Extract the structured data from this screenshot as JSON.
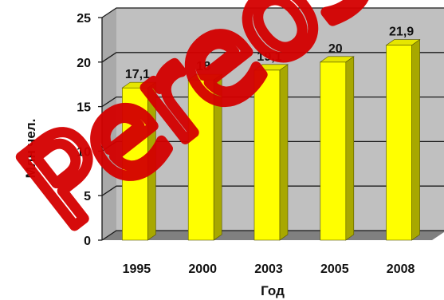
{
  "chart_data": {
    "type": "bar",
    "style": "3d",
    "title": "",
    "xlabel": "Год",
    "ylabel": "Млн чел.",
    "categories": [
      "1995",
      "2000",
      "2003",
      "2005",
      "2008"
    ],
    "values": [
      17.1,
      18,
      19.1,
      20,
      21.9
    ],
    "data_labels": [
      "17,1",
      "18",
      "19,1",
      "20",
      "21,9"
    ],
    "ylim": [
      0,
      25
    ],
    "yticks": [
      0,
      5,
      10,
      15,
      20,
      25
    ],
    "grid": true,
    "legend": "none",
    "colors": {
      "bar_front": "#ffff00",
      "bar_side": "#a8a800",
      "bar_top": "#e6e600",
      "wall": "#c0c0c0",
      "floor": "#808080",
      "gridline": "#1a1a1a"
    }
  },
  "watermark": {
    "text": "Pereosa",
    "color": "#d40000"
  }
}
